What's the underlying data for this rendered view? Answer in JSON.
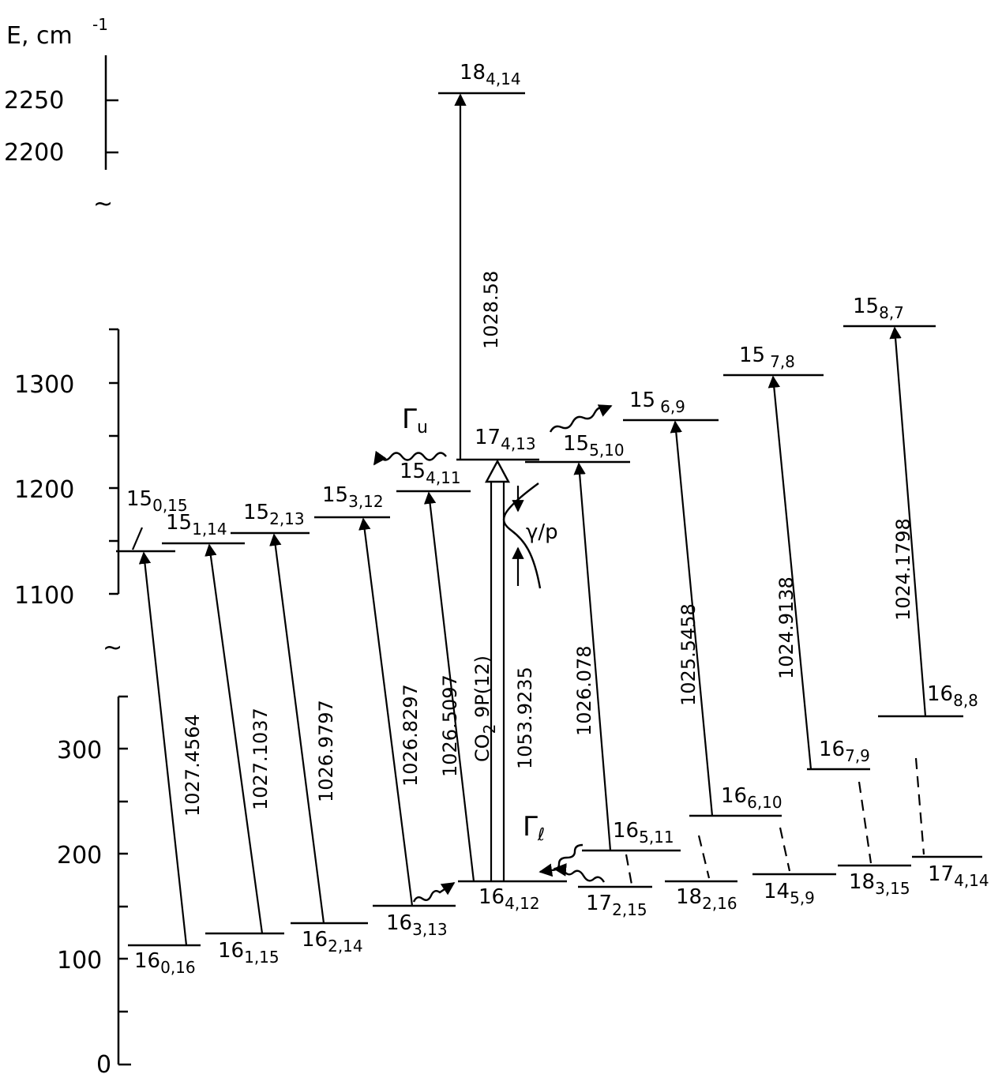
{
  "axis": {
    "title": "E, cm",
    "title_exp": "-1",
    "ticks_upper": [
      "2250",
      "2200"
    ],
    "ticks_middle": [
      "1300",
      "1200",
      "1100"
    ],
    "ticks_lower": [
      "300",
      "200",
      "100",
      "0"
    ],
    "break_symbol": "~"
  },
  "levels": {
    "l_18_4_14": {
      "n": "18",
      "k": "4,14"
    },
    "l_17_4_13": {
      "n": "17",
      "k": "4,13"
    },
    "l_15_0_15": {
      "n": "15",
      "k": "0,15"
    },
    "l_15_1_14": {
      "n": "15",
      "k": "1,14"
    },
    "l_15_2_13": {
      "n": "15",
      "k": "2,13"
    },
    "l_15_3_12": {
      "n": "15",
      "k": "3,12"
    },
    "l_15_4_11": {
      "n": "15",
      "k": "4,11"
    },
    "l_15_5_10": {
      "n": "15",
      "k": "5,10"
    },
    "l_15_6_9": {
      "n": "15",
      "k": "6,9"
    },
    "l_15_7_8": {
      "n": "15",
      "k": "7,8"
    },
    "l_15_8_7": {
      "n": "15",
      "k": "8,7"
    },
    "l_16_0_16": {
      "n": "16",
      "k": "0,16"
    },
    "l_16_1_15": {
      "n": "16",
      "k": "1,15"
    },
    "l_16_2_14": {
      "n": "16",
      "k": "2,14"
    },
    "l_16_3_13": {
      "n": "16",
      "k": "3,13"
    },
    "l_16_4_12": {
      "n": "16",
      "k": "4,12"
    },
    "l_17_2_15": {
      "n": "17",
      "k": "2,15"
    },
    "l_16_5_11": {
      "n": "16",
      "k": "5,11"
    },
    "l_18_2_16": {
      "n": "18",
      "k": "2,16"
    },
    "l_16_6_10": {
      "n": "16",
      "k": "6,10"
    },
    "l_14_5_9": {
      "n": "14",
      "k": "5,9"
    },
    "l_16_7_9": {
      "n": "16",
      "k": "7,9"
    },
    "l_18_3_15": {
      "n": "18",
      "k": "3,15"
    },
    "l_16_8_8": {
      "n": "16",
      "k": "8,8"
    },
    "l_17_4_14": {
      "n": "17",
      "k": "4,14"
    }
  },
  "transitions": {
    "t1": "1027.4564",
    "t2": "1027.1037",
    "t3": "1026.9797",
    "t4": "1026.8297",
    "t5": "1026.5097",
    "t6": "1053.9235",
    "t7": "1026.078",
    "t8": "1025.5458",
    "t9": "1024.9138",
    "t10": "1024.1798",
    "t_up": "1028.58"
  },
  "pump": {
    "label": "CO",
    "sub": "2",
    "rest": " 9P(12)"
  },
  "annotations": {
    "gamma_u": "Γ",
    "gamma_u_sub": "u",
    "gamma_l": "Γ",
    "gamma_l_sub": "ℓ",
    "gamma_p": "γ/p"
  }
}
